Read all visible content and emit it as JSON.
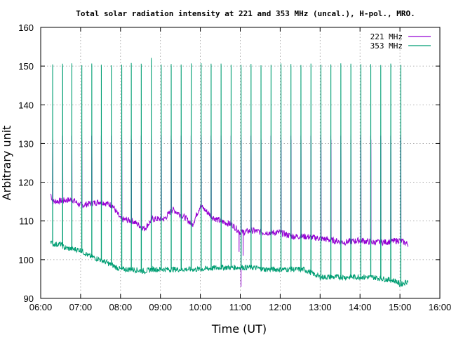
{
  "chart_data": {
    "type": "line",
    "title": "Total solar radiation intensity at 221 and 353 MHz (uncal.), H-pol., MRO.",
    "xlabel": "Time (UT)",
    "ylabel": "Arbitrary unit",
    "xlim": [
      6,
      16
    ],
    "ylim": [
      90,
      160
    ],
    "x_ticks": [
      6,
      7,
      8,
      9,
      10,
      11,
      12,
      13,
      14,
      15,
      16
    ],
    "x_tick_labels": [
      "06:00",
      "07:00",
      "08:00",
      "09:00",
      "10:00",
      "11:00",
      "12:00",
      "13:00",
      "14:00",
      "15:00",
      "16:00"
    ],
    "y_ticks": [
      90,
      100,
      110,
      120,
      130,
      140,
      150,
      160
    ],
    "y_tick_labels": [
      "90",
      "100",
      "110",
      "120",
      "130",
      "140",
      "150",
      "160"
    ],
    "grid": true,
    "legend_position": "top-right",
    "x_start": 6.25,
    "x_end": 15.2,
    "spike_times": [
      6.3,
      6.55,
      6.78,
      7.03,
      7.28,
      7.52,
      7.77,
      8.03,
      8.27,
      8.52,
      8.77,
      9.02,
      9.27,
      9.52,
      9.77,
      10.02,
      10.27,
      10.52,
      10.77,
      11.02,
      11.27,
      11.52,
      11.77,
      12.02,
      12.27,
      12.52,
      12.77,
      13.02,
      13.27,
      13.52,
      13.77,
      14.02,
      14.27,
      14.52,
      14.77,
      15.02
    ],
    "series": [
      {
        "name": "221 MHz",
        "color": "#9400d3",
        "baseline": [
          [
            6.25,
            117
          ],
          [
            6.3,
            115
          ],
          [
            6.8,
            115.5
          ],
          [
            7.0,
            114
          ],
          [
            7.5,
            115
          ],
          [
            7.8,
            114
          ],
          [
            8.0,
            110.5
          ],
          [
            8.3,
            110
          ],
          [
            8.6,
            108
          ],
          [
            8.8,
            110.5
          ],
          [
            9.1,
            110.5
          ],
          [
            9.3,
            113
          ],
          [
            9.6,
            111
          ],
          [
            9.8,
            109
          ],
          [
            10.0,
            114
          ],
          [
            10.3,
            111
          ],
          [
            10.5,
            110
          ],
          [
            10.8,
            109
          ],
          [
            11.0,
            107
          ],
          [
            11.3,
            107.5
          ],
          [
            11.6,
            107
          ],
          [
            12.0,
            107
          ],
          [
            12.3,
            106
          ],
          [
            12.6,
            106
          ],
          [
            13.0,
            105.5
          ],
          [
            13.3,
            105
          ],
          [
            13.6,
            104.5
          ],
          [
            14.0,
            105
          ],
          [
            14.3,
            104.5
          ],
          [
            14.6,
            104.5
          ],
          [
            15.0,
            105
          ],
          [
            15.2,
            104
          ]
        ],
        "spike_band": [
          124,
          132
        ],
        "dips": [
          [
            10.97,
            102
          ],
          [
            11.02,
            93
          ],
          [
            11.07,
            101
          ]
        ]
      },
      {
        "name": "353 MHz",
        "color": "#009e73",
        "baseline": [
          [
            6.25,
            105
          ],
          [
            6.3,
            104
          ],
          [
            6.5,
            104
          ],
          [
            6.6,
            103
          ],
          [
            7.0,
            102.5
          ],
          [
            7.2,
            101
          ],
          [
            7.5,
            100
          ],
          [
            7.8,
            98.5
          ],
          [
            8.0,
            97.5
          ],
          [
            8.3,
            97.5
          ],
          [
            8.6,
            97
          ],
          [
            8.8,
            97.5
          ],
          [
            9.1,
            97.5
          ],
          [
            9.5,
            97.5
          ],
          [
            10.0,
            97.5
          ],
          [
            10.5,
            98
          ],
          [
            11.0,
            98
          ],
          [
            11.3,
            98
          ],
          [
            11.6,
            97.5
          ],
          [
            12.0,
            97.5
          ],
          [
            12.3,
            97.5
          ],
          [
            12.6,
            97.5
          ],
          [
            13.0,
            95.5
          ],
          [
            13.3,
            95.5
          ],
          [
            13.6,
            95.5
          ],
          [
            14.0,
            95.5
          ],
          [
            14.3,
            95.5
          ],
          [
            14.6,
            95
          ],
          [
            14.9,
            94.5
          ],
          [
            15.0,
            93.5
          ],
          [
            15.2,
            94.5
          ]
        ],
        "spike_peak": 150.5
      }
    ]
  }
}
